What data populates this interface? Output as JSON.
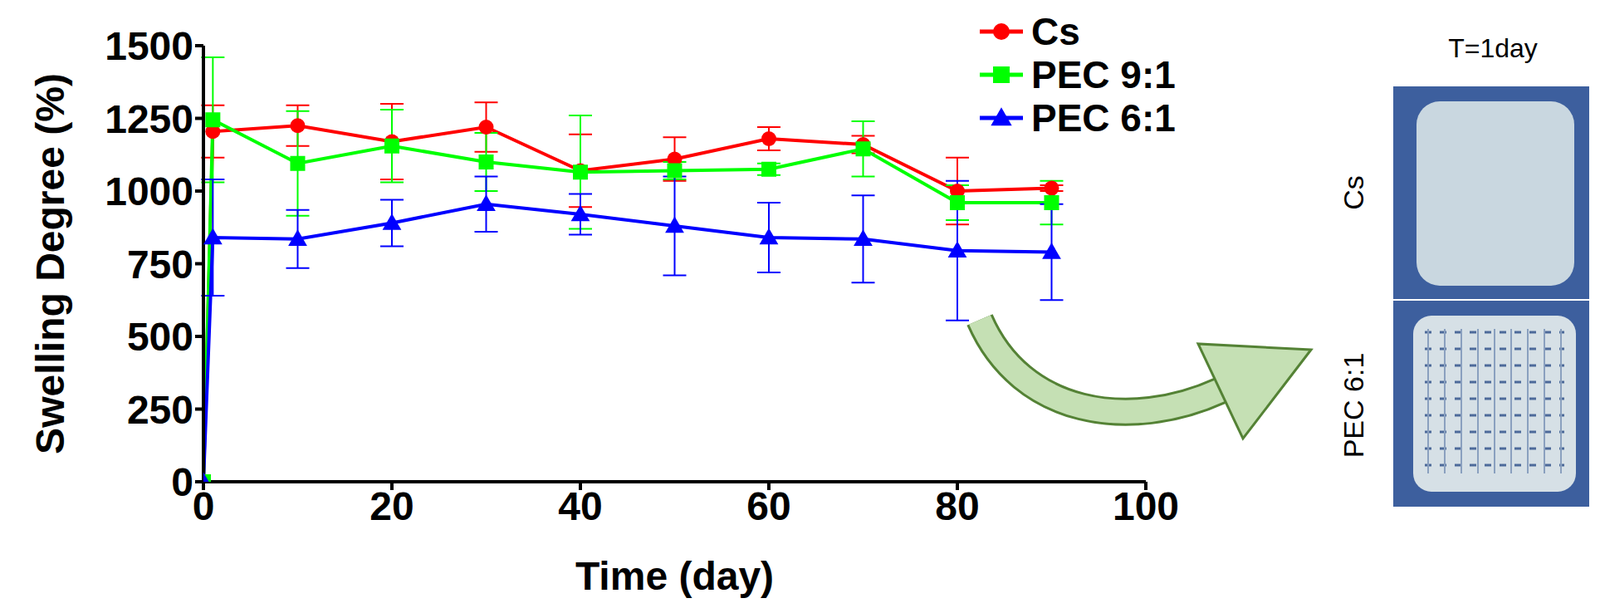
{
  "chart_data": {
    "type": "line",
    "x_label": "Time (day)",
    "y_label": "Swelling Degree (%)",
    "x": [
      0,
      1,
      10,
      20,
      30,
      40,
      50,
      60,
      70,
      80,
      90
    ],
    "series": [
      {
        "name": "Cs",
        "color": "#ff0000",
        "marker": "circle",
        "values": [
          0,
          1205,
          1225,
          1170,
          1220,
          1070,
          1110,
          1180,
          1160,
          1000,
          1010
        ],
        "errors": [
          0,
          90,
          70,
          130,
          85,
          125,
          75,
          40,
          30,
          115,
          10
        ]
      },
      {
        "name": "PEC 9:1",
        "color": "#00ff00",
        "marker": "square",
        "values": [
          0,
          1245,
          1095,
          1155,
          1100,
          1065,
          1070,
          1075,
          1145,
          960,
          960
        ],
        "errors": [
          0,
          215,
          180,
          125,
          100,
          195,
          30,
          20,
          95,
          60,
          75
        ]
      },
      {
        "name": "PEC 6:1",
        "color": "#0000ff",
        "marker": "triangle",
        "values": [
          0,
          840,
          835,
          890,
          955,
          920,
          880,
          840,
          835,
          795,
          790
        ],
        "errors": [
          0,
          200,
          100,
          80,
          95,
          70,
          170,
          120,
          150,
          240,
          165
        ]
      }
    ],
    "xlim": [
      0,
      100
    ],
    "ylim": [
      0,
      1500
    ],
    "xticks": [
      0,
      20,
      40,
      60,
      80,
      100
    ],
    "yticks": [
      0,
      250,
      500,
      750,
      1000,
      1250,
      1500
    ],
    "grid": false,
    "legend": "top right",
    "annotations": {
      "title": "T=1day",
      "labels": [
        "Cs",
        "PEC 6:1"
      ]
    }
  }
}
